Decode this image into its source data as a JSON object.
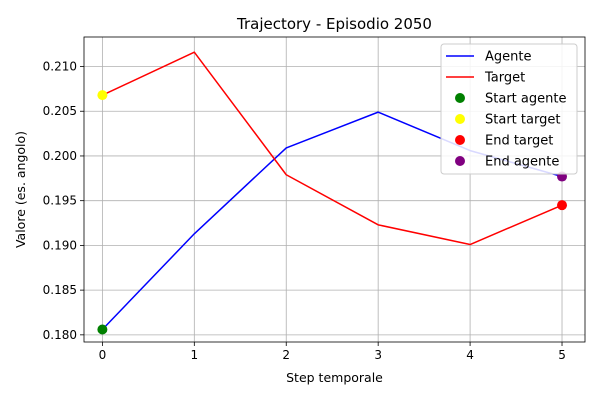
{
  "chart_data": {
    "type": "line",
    "title": "Trajectory - Episodio 2050",
    "xlabel": "Step temporale",
    "ylabel": "Valore (es. angolo)",
    "x": [
      0,
      1,
      2,
      3,
      4,
      5
    ],
    "xlim": [
      -0.2,
      5.25
    ],
    "ylim": [
      0.1792,
      0.2133
    ],
    "xticks": [
      "0",
      "1",
      "2",
      "3",
      "4",
      "5"
    ],
    "yticks": [
      "0.180",
      "0.185",
      "0.190",
      "0.195",
      "0.200",
      "0.205",
      "0.210"
    ],
    "grid": true,
    "legend_position": "top-right",
    "series": [
      {
        "name": "Agente",
        "color": "#0000ff",
        "values": [
          0.1806,
          0.1913,
          0.2009,
          0.2049,
          0.2006,
          0.1977
        ]
      },
      {
        "name": "Target",
        "color": "#ff0000",
        "values": [
          0.2068,
          0.2116,
          0.1979,
          0.1923,
          0.1901,
          0.1945
        ]
      }
    ],
    "markers": [
      {
        "name": "Start agente",
        "color": "#008000",
        "x": 0,
        "y": 0.1806
      },
      {
        "name": "Start target",
        "color": "#ffff00",
        "x": 0,
        "y": 0.2068
      },
      {
        "name": "End target",
        "color": "#ff0000",
        "x": 5,
        "y": 0.1945
      },
      {
        "name": "End agente",
        "color": "#800080",
        "x": 5,
        "y": 0.1977
      }
    ]
  }
}
